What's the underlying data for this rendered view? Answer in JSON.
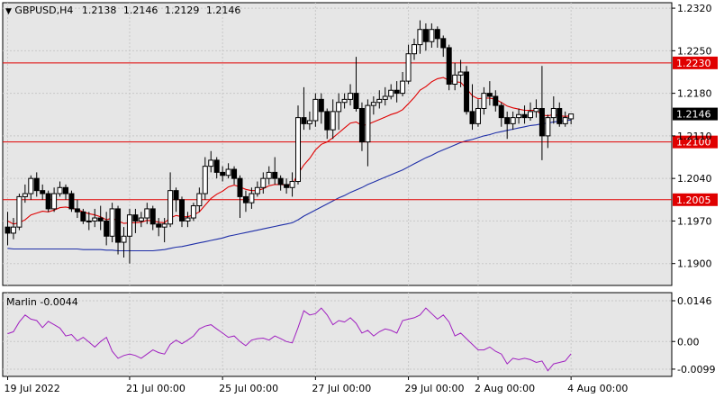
{
  "header": {
    "symbol": "GBPUSD,H4",
    "open": "1.2138",
    "high": "1.2146",
    "low": "1.2129",
    "close": "1.2146"
  },
  "oscillator": {
    "name": "Marlin",
    "value": "-0.0044"
  },
  "colors": {
    "background": "#ffffff",
    "panel_bg": "#e6e6e6",
    "grid": "#c8c8c8",
    "candle": "#000000",
    "fast_ma": "#e00000",
    "slow_ma": "#1f2fa8",
    "oscillator": "#a020c0",
    "level_line": "#e00000",
    "level_label_text": "#ffffff",
    "price_label_bg": "#000000"
  },
  "chart_data": [
    {
      "type": "candlestick",
      "title": "GBPUSD,H4",
      "ylim": [
        1.1864,
        1.2329
      ],
      "grid": true,
      "y_ticks": [
        "1.2320",
        "1.2250",
        "1.2180",
        "1.2110",
        "1.2040",
        "1.1970",
        "1.1900"
      ],
      "x_ticks": [
        {
          "label": "19 Jul 2022",
          "index": 0
        },
        {
          "label": "21 Jul 00:00",
          "index": 21
        },
        {
          "label": "25 Jul 00:00",
          "index": 37
        },
        {
          "label": "27 Jul 00:00",
          "index": 53
        },
        {
          "label": "29 Jul 00:00",
          "index": 69
        },
        {
          "label": "2 Aug 00:00",
          "index": 81
        },
        {
          "label": "4 Aug 00:00",
          "index": 97
        }
      ],
      "horizontal_levels": [
        {
          "value": 1.223,
          "label": "1.2230"
        },
        {
          "value": 1.21,
          "label": "1.2100"
        },
        {
          "value": 1.2005,
          "label": "1.2005"
        }
      ],
      "current_price": {
        "value": 1.2146,
        "label": "1.2146"
      },
      "candles": [
        [
          1.196,
          1.195,
          1.1985,
          1.193
        ],
        [
          1.195,
          1.196,
          1.1975,
          1.194
        ],
        [
          1.196,
          1.201,
          1.2015,
          1.1955
        ],
        [
          1.201,
          1.2015,
          1.203,
          1.2
        ],
        [
          1.2015,
          1.204,
          1.2045,
          1.2005
        ],
        [
          1.204,
          1.202,
          1.205,
          1.201
        ],
        [
          1.202,
          1.2015,
          1.203,
          1.2005
        ],
        [
          1.2015,
          1.199,
          1.202,
          1.1985
        ],
        [
          1.199,
          1.2015,
          1.2025,
          1.1985
        ],
        [
          1.2015,
          1.2025,
          1.2035,
          1.201
        ],
        [
          1.2025,
          1.2015,
          1.203,
          1.2005
        ],
        [
          1.2015,
          1.199,
          1.202,
          1.1985
        ],
        [
          1.199,
          1.1985,
          1.2005,
          1.1975
        ],
        [
          1.1985,
          1.197,
          1.199,
          1.1965
        ],
        [
          1.197,
          1.197,
          1.1985,
          1.1955
        ],
        [
          1.197,
          1.1975,
          1.199,
          1.196
        ],
        [
          1.1975,
          1.197,
          1.1995,
          1.1955
        ],
        [
          1.197,
          1.1945,
          1.1985,
          1.193
        ],
        [
          1.1945,
          1.199,
          1.2,
          1.1935
        ],
        [
          1.199,
          1.1935,
          1.1995,
          1.1915
        ],
        [
          1.1935,
          1.1945,
          1.196,
          1.191
        ],
        [
          1.1945,
          1.198,
          1.199,
          1.19
        ],
        [
          1.198,
          1.197,
          1.199,
          1.195
        ],
        [
          1.197,
          1.1975,
          1.1985,
          1.196
        ],
        [
          1.1975,
          1.199,
          1.2,
          1.1965
        ],
        [
          1.199,
          1.1965,
          1.1995,
          1.1955
        ],
        [
          1.1965,
          1.196,
          1.1975,
          1.1945
        ],
        [
          1.196,
          1.1965,
          1.1975,
          1.1935
        ],
        [
          1.1965,
          1.202,
          1.205,
          1.196
        ],
        [
          1.202,
          1.2005,
          1.2025,
          1.1985
        ],
        [
          1.2005,
          1.197,
          1.201,
          1.196
        ],
        [
          1.197,
          1.1975,
          1.1985,
          1.196
        ],
        [
          1.1975,
          1.1995,
          1.2,
          1.197
        ],
        [
          1.1995,
          1.2015,
          1.2025,
          1.1985
        ],
        [
          1.2015,
          1.206,
          1.2075,
          1.2005
        ],
        [
          1.206,
          1.207,
          1.2085,
          1.205
        ],
        [
          1.207,
          1.205,
          1.2075,
          1.204
        ],
        [
          1.205,
          1.2045,
          1.206,
          1.2035
        ],
        [
          1.2045,
          1.2055,
          1.2065,
          1.204
        ],
        [
          1.2055,
          1.204,
          1.206,
          1.203
        ],
        [
          1.204,
          1.201,
          1.2045,
          1.1975
        ],
        [
          1.201,
          1.2,
          1.202,
          1.1985
        ],
        [
          1.2,
          1.2015,
          1.2025,
          1.199
        ],
        [
          1.2015,
          1.2025,
          1.2035,
          1.201
        ],
        [
          1.2025,
          1.204,
          1.205,
          1.2015
        ],
        [
          1.204,
          1.205,
          1.206,
          1.203
        ],
        [
          1.205,
          1.204,
          1.2075,
          1.203
        ],
        [
          1.204,
          1.203,
          1.2045,
          1.202
        ],
        [
          1.203,
          1.2025,
          1.204,
          1.2015
        ],
        [
          1.2025,
          1.2035,
          1.205,
          1.201
        ],
        [
          1.2035,
          1.214,
          1.216,
          1.203
        ],
        [
          1.214,
          1.213,
          1.219,
          1.212
        ],
        [
          1.213,
          1.2135,
          1.215,
          1.212
        ],
        [
          1.2135,
          1.217,
          1.218,
          1.2125
        ],
        [
          1.217,
          1.215,
          1.218,
          1.213
        ],
        [
          1.215,
          1.212,
          1.2155,
          1.2105
        ],
        [
          1.212,
          1.215,
          1.217,
          1.2105
        ],
        [
          1.215,
          1.2165,
          1.218,
          1.212
        ],
        [
          1.2165,
          1.217,
          1.218,
          1.2155
        ],
        [
          1.217,
          1.218,
          1.2195,
          1.216
        ],
        [
          1.218,
          1.2155,
          1.224,
          1.215
        ],
        [
          1.2155,
          1.21,
          1.2165,
          1.2085
        ],
        [
          1.21,
          1.216,
          1.217,
          1.206
        ],
        [
          1.216,
          1.2165,
          1.2175,
          1.2145
        ],
        [
          1.2165,
          1.217,
          1.2185,
          1.2155
        ],
        [
          1.217,
          1.2175,
          1.219,
          1.216
        ],
        [
          1.2175,
          1.2185,
          1.2195,
          1.217
        ],
        [
          1.2185,
          1.218,
          1.22,
          1.2165
        ],
        [
          1.218,
          1.22,
          1.2215,
          1.2175
        ],
        [
          1.22,
          1.2245,
          1.226,
          1.2195
        ],
        [
          1.2245,
          1.226,
          1.227,
          1.2235
        ],
        [
          1.226,
          1.2285,
          1.23,
          1.2245
        ],
        [
          1.2285,
          1.2265,
          1.2295,
          1.225
        ],
        [
          1.2265,
          1.2285,
          1.2295,
          1.2255
        ],
        [
          1.2285,
          1.227,
          1.229,
          1.2255
        ],
        [
          1.227,
          1.2255,
          1.2275,
          1.224
        ],
        [
          1.2255,
          1.2195,
          1.226,
          1.2185
        ],
        [
          1.2195,
          1.221,
          1.223,
          1.2185
        ],
        [
          1.221,
          1.2215,
          1.2235,
          1.219
        ],
        [
          1.2215,
          1.215,
          1.2225,
          1.2145
        ],
        [
          1.215,
          1.213,
          1.2195,
          1.212
        ],
        [
          1.213,
          1.2155,
          1.217,
          1.2125
        ],
        [
          1.2155,
          1.218,
          1.219,
          1.2145
        ],
        [
          1.218,
          1.2175,
          1.22,
          1.216
        ],
        [
          1.2175,
          1.216,
          1.2185,
          1.215
        ],
        [
          1.216,
          1.214,
          1.2165,
          1.2125
        ],
        [
          1.214,
          1.213,
          1.215,
          1.2105
        ],
        [
          1.213,
          1.214,
          1.215,
          1.212
        ],
        [
          1.214,
          1.2145,
          1.2155,
          1.213
        ],
        [
          1.2145,
          1.214,
          1.216,
          1.213
        ],
        [
          1.214,
          1.215,
          1.2165,
          1.2135
        ],
        [
          1.215,
          1.2155,
          1.217,
          1.214
        ],
        [
          1.2155,
          1.211,
          1.2225,
          1.207
        ],
        [
          1.211,
          1.214,
          1.2145,
          1.209
        ],
        [
          1.214,
          1.2155,
          1.2175,
          1.213
        ],
        [
          1.2155,
          1.213,
          1.2165,
          1.2125
        ],
        [
          1.213,
          1.214,
          1.215,
          1.2125
        ],
        [
          1.2138,
          1.2146,
          1.2146,
          1.2129
        ]
      ],
      "series": [
        {
          "name": "",
          "values": [
            1.197,
            1.1965,
            1.1967,
            1.1972,
            1.198,
            1.1983,
            1.1986,
            1.1985,
            1.1988,
            1.1992,
            1.1993,
            1.1991,
            1.1989,
            1.1985,
            1.1982,
            1.198,
            1.1977,
            1.1972,
            1.1975,
            1.197,
            1.1966,
            1.1967,
            1.1967,
            1.1968,
            1.1971,
            1.197,
            1.1968,
            1.1967,
            1.1975,
            1.1979,
            1.1977,
            1.1977,
            1.198,
            1.1985,
            1.1996,
            1.2007,
            1.2014,
            1.2019,
            1.2026,
            1.2029,
            1.2026,
            1.2022,
            1.202,
            1.202,
            1.2023,
            1.2028,
            1.203,
            1.203,
            1.2029,
            1.203,
            1.2048,
            1.2062,
            1.2073,
            1.2087,
            1.2096,
            1.21,
            1.2107,
            1.2115,
            1.2123,
            1.2131,
            1.2133,
            1.2127,
            1.2129,
            1.2133,
            1.2137,
            1.2141,
            1.2145,
            1.2148,
            1.2153,
            1.2163,
            1.2173,
            1.2185,
            1.2191,
            1.2199,
            1.2204,
            1.2206,
            1.2201,
            1.2199,
            1.2198,
            1.2188,
            1.2176,
            1.2171,
            1.2172,
            1.2172,
            1.217,
            1.2165,
            1.2159,
            1.2156,
            1.2154,
            1.2152,
            1.2152,
            1.2152,
            1.2144,
            1.2143,
            1.2145,
            1.2143,
            1.2142,
            1.2143
          ]
        },
        {
          "name": "",
          "values": [
            1.1925,
            1.1924,
            1.1924,
            1.1924,
            1.1924,
            1.1924,
            1.1924,
            1.1924,
            1.1924,
            1.1924,
            1.1924,
            1.1924,
            1.1924,
            1.1923,
            1.1923,
            1.1923,
            1.1923,
            1.1922,
            1.1922,
            1.1921,
            1.1921,
            1.1921,
            1.1921,
            1.1921,
            1.1921,
            1.1921,
            1.1922,
            1.1923,
            1.1925,
            1.1927,
            1.1928,
            1.193,
            1.1932,
            1.1934,
            1.1936,
            1.1938,
            1.194,
            1.1942,
            1.1945,
            1.1947,
            1.1949,
            1.1951,
            1.1953,
            1.1955,
            1.1957,
            1.1959,
            1.1961,
            1.1963,
            1.1965,
            1.1967,
            1.1972,
            1.1978,
            1.1983,
            1.1988,
            1.1993,
            1.1998,
            1.2003,
            1.2008,
            1.2012,
            1.2017,
            1.2021,
            1.2025,
            1.203,
            1.2034,
            1.2038,
            1.2042,
            1.2046,
            1.205,
            1.2054,
            1.2059,
            1.2064,
            1.2069,
            1.2074,
            1.2078,
            1.2083,
            1.2087,
            1.2091,
            1.2095,
            1.2099,
            1.2102,
            1.2104,
            1.2107,
            1.211,
            1.2112,
            1.2115,
            1.2117,
            1.2119,
            1.2121,
            1.2123,
            1.2125,
            1.2127,
            1.2128,
            1.213,
            1.2131,
            1.2133,
            1.2134,
            1.2135,
            1.2136
          ]
        }
      ]
    },
    {
      "type": "line",
      "title": "Marlin -0.0044",
      "ylim": [
        -0.0125,
        0.0175
      ],
      "y_ticks": [
        "0.0146",
        "0.00",
        "-0.0099"
      ],
      "series": [
        {
          "name": "Marlin",
          "values": [
            0.0028,
            0.0035,
            0.007,
            0.0095,
            0.008,
            0.0075,
            0.005,
            0.0072,
            0.006,
            0.0048,
            0.002,
            0.0025,
            0.0002,
            0.0015,
            -0.0002,
            -0.002,
            0.0,
            0.0015,
            -0.0035,
            -0.006,
            -0.005,
            -0.0045,
            -0.005,
            -0.006,
            -0.0045,
            -0.003,
            -0.004,
            -0.0045,
            -0.001,
            0.0005,
            -0.0008,
            0.0005,
            0.002,
            0.0045,
            0.0055,
            0.006,
            0.0045,
            0.003,
            0.0015,
            0.002,
            0.0,
            -0.0015,
            0.0005,
            0.001,
            0.0012,
            0.0005,
            0.002,
            0.001,
            0.0,
            -0.0005,
            0.005,
            0.011,
            0.0095,
            0.01,
            0.012,
            0.0095,
            0.006,
            0.0075,
            0.007,
            0.0085,
            0.0065,
            0.003,
            0.004,
            0.002,
            0.0035,
            0.0045,
            0.004,
            0.003,
            0.0075,
            0.008,
            0.0085,
            0.0095,
            0.012,
            0.01,
            0.008,
            0.0095,
            0.007,
            0.002,
            0.003,
            0.001,
            -0.001,
            -0.003,
            -0.003,
            -0.002,
            -0.0035,
            -0.0045,
            -0.008,
            -0.006,
            -0.0065,
            -0.006,
            -0.0065,
            -0.0075,
            -0.007,
            -0.0105,
            -0.008,
            -0.0075,
            -0.007,
            -0.0044
          ]
        }
      ]
    }
  ]
}
